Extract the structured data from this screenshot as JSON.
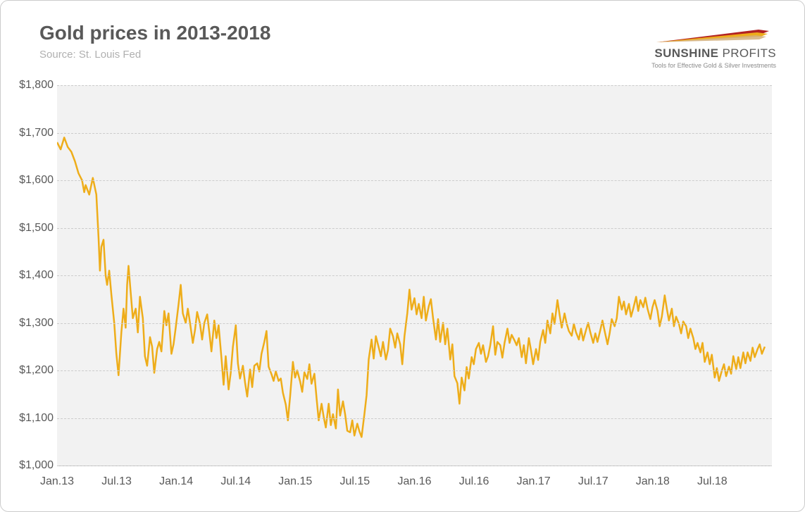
{
  "chart": {
    "type": "line",
    "title": "Gold prices in 2013-2018",
    "subtitle": "Source: St. Louis Fed",
    "background_color": "#ffffff",
    "plot_background_color": "#f2f2f2",
    "grid_color": "#cccccc",
    "grid_dash": "4,4",
    "axis_text_color": "#595959",
    "title_color": "#595959",
    "title_fontsize": 28,
    "subtitle_color": "#b0b0b0",
    "subtitle_fontsize": 15,
    "tick_fontsize": 16,
    "border_color": "#cccccc",
    "border_radius": 12,
    "y_axis": {
      "min": 1000,
      "max": 1800,
      "tick_step": 100,
      "tick_labels": [
        "$1,000",
        "$1,100",
        "$1,200",
        "$1,300",
        "$1,400",
        "$1,500",
        "$1,600",
        "$1,700",
        "$1,800"
      ]
    },
    "x_axis": {
      "labels": [
        "Jan.13",
        "Jul.13",
        "Jan.14",
        "Jul.14",
        "Jan.15",
        "Jul.15",
        "Jan.16",
        "Jul.16",
        "Jan.17",
        "Jul.17",
        "Jan.18",
        "Jul.18"
      ],
      "positions_pct": [
        0,
        8.33,
        16.66,
        25.0,
        33.33,
        41.66,
        50.0,
        58.33,
        66.66,
        75.0,
        83.33,
        91.66
      ]
    },
    "series": [
      {
        "name": "gold-price",
        "color": "#eead1a",
        "line_width": 2.5,
        "data": [
          [
            0.0,
            1680
          ],
          [
            0.5,
            1665
          ],
          [
            1.0,
            1690
          ],
          [
            1.5,
            1670
          ],
          [
            2.0,
            1660
          ],
          [
            2.5,
            1640
          ],
          [
            3.0,
            1615
          ],
          [
            3.5,
            1600
          ],
          [
            3.8,
            1575
          ],
          [
            4.0,
            1590
          ],
          [
            4.5,
            1570
          ],
          [
            5.0,
            1605
          ],
          [
            5.5,
            1570
          ],
          [
            5.8,
            1480
          ],
          [
            6.0,
            1410
          ],
          [
            6.2,
            1460
          ],
          [
            6.5,
            1475
          ],
          [
            6.8,
            1400
          ],
          [
            7.0,
            1380
          ],
          [
            7.3,
            1410
          ],
          [
            7.6,
            1360
          ],
          [
            8.0,
            1300
          ],
          [
            8.3,
            1235
          ],
          [
            8.6,
            1190
          ],
          [
            9.0,
            1280
          ],
          [
            9.3,
            1330
          ],
          [
            9.6,
            1290
          ],
          [
            9.8,
            1380
          ],
          [
            10.0,
            1420
          ],
          [
            10.3,
            1365
          ],
          [
            10.6,
            1310
          ],
          [
            11.0,
            1330
          ],
          [
            11.3,
            1280
          ],
          [
            11.6,
            1355
          ],
          [
            12.0,
            1310
          ],
          [
            12.3,
            1230
          ],
          [
            12.6,
            1210
          ],
          [
            13.0,
            1270
          ],
          [
            13.3,
            1250
          ],
          [
            13.6,
            1195
          ],
          [
            14.0,
            1245
          ],
          [
            14.3,
            1260
          ],
          [
            14.6,
            1240
          ],
          [
            15.0,
            1325
          ],
          [
            15.3,
            1295
          ],
          [
            15.6,
            1320
          ],
          [
            16.0,
            1235
          ],
          [
            16.3,
            1255
          ],
          [
            16.6,
            1290
          ],
          [
            17.0,
            1340
          ],
          [
            17.3,
            1380
          ],
          [
            17.6,
            1320
          ],
          [
            18.0,
            1300
          ],
          [
            18.3,
            1330
          ],
          [
            18.6,
            1300
          ],
          [
            19.0,
            1258
          ],
          [
            19.3,
            1285
          ],
          [
            19.6,
            1323
          ],
          [
            20.0,
            1298
          ],
          [
            20.3,
            1265
          ],
          [
            20.6,
            1300
          ],
          [
            21.0,
            1318
          ],
          [
            21.3,
            1280
          ],
          [
            21.6,
            1240
          ],
          [
            22.0,
            1305
          ],
          [
            22.3,
            1268
          ],
          [
            22.6,
            1295
          ],
          [
            23.0,
            1225
          ],
          [
            23.3,
            1170
          ],
          [
            23.6,
            1230
          ],
          [
            24.0,
            1160
          ],
          [
            24.3,
            1195
          ],
          [
            24.6,
            1250
          ],
          [
            25.0,
            1295
          ],
          [
            25.3,
            1215
          ],
          [
            25.6,
            1183
          ],
          [
            26.0,
            1210
          ],
          [
            26.3,
            1175
          ],
          [
            26.6,
            1145
          ],
          [
            27.0,
            1202
          ],
          [
            27.3,
            1165
          ],
          [
            27.6,
            1210
          ],
          [
            28.0,
            1215
          ],
          [
            28.3,
            1198
          ],
          [
            28.6,
            1235
          ],
          [
            29.0,
            1260
          ],
          [
            29.3,
            1283
          ],
          [
            29.6,
            1208
          ],
          [
            30.0,
            1192
          ],
          [
            30.3,
            1178
          ],
          [
            30.6,
            1198
          ],
          [
            31.0,
            1178
          ],
          [
            31.3,
            1183
          ],
          [
            31.6,
            1153
          ],
          [
            32.0,
            1128
          ],
          [
            32.3,
            1095
          ],
          [
            32.6,
            1145
          ],
          [
            33.0,
            1218
          ],
          [
            33.3,
            1185
          ],
          [
            33.6,
            1200
          ],
          [
            34.0,
            1177
          ],
          [
            34.3,
            1155
          ],
          [
            34.6,
            1196
          ],
          [
            35.0,
            1182
          ],
          [
            35.3,
            1213
          ],
          [
            35.6,
            1172
          ],
          [
            36.0,
            1193
          ],
          [
            36.3,
            1143
          ],
          [
            36.6,
            1095
          ],
          [
            37.0,
            1130
          ],
          [
            37.3,
            1102
          ],
          [
            37.6,
            1080
          ],
          [
            38.0,
            1130
          ],
          [
            38.3,
            1085
          ],
          [
            38.6,
            1108
          ],
          [
            39.0,
            1078
          ],
          [
            39.3,
            1160
          ],
          [
            39.6,
            1105
          ],
          [
            40.0,
            1135
          ],
          [
            40.3,
            1108
          ],
          [
            40.6,
            1073
          ],
          [
            41.0,
            1070
          ],
          [
            41.3,
            1095
          ],
          [
            41.6,
            1063
          ],
          [
            42.0,
            1088
          ],
          [
            42.3,
            1072
          ],
          [
            42.6,
            1060
          ],
          [
            43.0,
            1108
          ],
          [
            43.3,
            1148
          ],
          [
            43.6,
            1223
          ],
          [
            44.0,
            1265
          ],
          [
            44.3,
            1225
          ],
          [
            44.6,
            1272
          ],
          [
            45.0,
            1248
          ],
          [
            45.3,
            1230
          ],
          [
            45.6,
            1260
          ],
          [
            46.0,
            1223
          ],
          [
            46.3,
            1243
          ],
          [
            46.6,
            1288
          ],
          [
            47.0,
            1272
          ],
          [
            47.3,
            1248
          ],
          [
            47.6,
            1278
          ],
          [
            48.0,
            1255
          ],
          [
            48.3,
            1213
          ],
          [
            48.6,
            1272
          ],
          [
            49.0,
            1320
          ],
          [
            49.3,
            1370
          ],
          [
            49.6,
            1328
          ],
          [
            50.0,
            1352
          ],
          [
            50.3,
            1318
          ],
          [
            50.6,
            1340
          ],
          [
            51.0,
            1310
          ],
          [
            51.3,
            1355
          ],
          [
            51.6,
            1305
          ],
          [
            52.0,
            1335
          ],
          [
            52.3,
            1350
          ],
          [
            52.6,
            1310
          ],
          [
            53.0,
            1265
          ],
          [
            53.3,
            1308
          ],
          [
            53.6,
            1260
          ],
          [
            54.0,
            1300
          ],
          [
            54.3,
            1255
          ],
          [
            54.6,
            1288
          ],
          [
            55.0,
            1223
          ],
          [
            55.3,
            1255
          ],
          [
            55.6,
            1188
          ],
          [
            56.0,
            1173
          ],
          [
            56.3,
            1130
          ],
          [
            56.6,
            1185
          ],
          [
            57.0,
            1158
          ],
          [
            57.3,
            1207
          ],
          [
            57.6,
            1183
          ],
          [
            58.0,
            1228
          ],
          [
            58.3,
            1213
          ],
          [
            58.6,
            1245
          ],
          [
            59.0,
            1258
          ],
          [
            59.3,
            1235
          ],
          [
            59.6,
            1253
          ],
          [
            60.0,
            1218
          ],
          [
            60.3,
            1230
          ],
          [
            60.6,
            1253
          ],
          [
            61.0,
            1293
          ],
          [
            61.3,
            1233
          ],
          [
            61.6,
            1260
          ],
          [
            62.0,
            1253
          ],
          [
            62.3,
            1227
          ],
          [
            62.6,
            1258
          ],
          [
            63.0,
            1288
          ],
          [
            63.3,
            1258
          ],
          [
            63.6,
            1275
          ],
          [
            64.0,
            1263
          ],
          [
            64.3,
            1253
          ],
          [
            64.6,
            1268
          ],
          [
            65.0,
            1228
          ],
          [
            65.3,
            1253
          ],
          [
            65.6,
            1215
          ],
          [
            66.0,
            1268
          ],
          [
            66.3,
            1243
          ],
          [
            66.6,
            1213
          ],
          [
            67.0,
            1245
          ],
          [
            67.3,
            1222
          ],
          [
            67.6,
            1260
          ],
          [
            68.0,
            1285
          ],
          [
            68.3,
            1258
          ],
          [
            68.6,
            1305
          ],
          [
            69.0,
            1278
          ],
          [
            69.3,
            1320
          ],
          [
            69.6,
            1298
          ],
          [
            70.0,
            1348
          ],
          [
            70.3,
            1318
          ],
          [
            70.6,
            1290
          ],
          [
            71.0,
            1320
          ],
          [
            71.3,
            1298
          ],
          [
            71.6,
            1283
          ],
          [
            72.0,
            1273
          ],
          [
            72.3,
            1298
          ],
          [
            72.6,
            1280
          ],
          [
            73.0,
            1265
          ],
          [
            73.3,
            1288
          ],
          [
            73.6,
            1263
          ],
          [
            74.0,
            1285
          ],
          [
            74.3,
            1300
          ],
          [
            74.6,
            1280
          ],
          [
            75.0,
            1258
          ],
          [
            75.3,
            1278
          ],
          [
            75.6,
            1260
          ],
          [
            76.0,
            1285
          ],
          [
            76.3,
            1305
          ],
          [
            76.6,
            1283
          ],
          [
            77.0,
            1255
          ],
          [
            77.3,
            1278
          ],
          [
            77.6,
            1308
          ],
          [
            78.0,
            1293
          ],
          [
            78.3,
            1310
          ],
          [
            78.6,
            1355
          ],
          [
            79.0,
            1328
          ],
          [
            79.3,
            1345
          ],
          [
            79.6,
            1318
          ],
          [
            80.0,
            1340
          ],
          [
            80.3,
            1313
          ],
          [
            80.6,
            1330
          ],
          [
            81.0,
            1355
          ],
          [
            81.3,
            1325
          ],
          [
            81.6,
            1348
          ],
          [
            82.0,
            1333
          ],
          [
            82.3,
            1353
          ],
          [
            82.6,
            1330
          ],
          [
            83.0,
            1308
          ],
          [
            83.3,
            1333
          ],
          [
            83.6,
            1348
          ],
          [
            84.0,
            1325
          ],
          [
            84.3,
            1293
          ],
          [
            84.6,
            1313
          ],
          [
            85.0,
            1358
          ],
          [
            85.3,
            1330
          ],
          [
            85.6,
            1305
          ],
          [
            86.0,
            1330
          ],
          [
            86.3,
            1293
          ],
          [
            86.6,
            1313
          ],
          [
            87.0,
            1298
          ],
          [
            87.3,
            1278
          ],
          [
            87.6,
            1303
          ],
          [
            88.0,
            1293
          ],
          [
            88.3,
            1268
          ],
          [
            88.6,
            1288
          ],
          [
            89.0,
            1268
          ],
          [
            89.3,
            1245
          ],
          [
            89.6,
            1258
          ],
          [
            90.0,
            1238
          ],
          [
            90.3,
            1258
          ],
          [
            90.6,
            1218
          ],
          [
            91.0,
            1238
          ],
          [
            91.3,
            1213
          ],
          [
            91.6,
            1233
          ],
          [
            92.0,
            1185
          ],
          [
            92.3,
            1205
          ],
          [
            92.6,
            1178
          ],
          [
            93.0,
            1200
          ],
          [
            93.3,
            1213
          ],
          [
            93.6,
            1188
          ],
          [
            94.0,
            1208
          ],
          [
            94.3,
            1193
          ],
          [
            94.6,
            1230
          ],
          [
            95.0,
            1203
          ],
          [
            95.3,
            1228
          ],
          [
            95.6,
            1205
          ],
          [
            96.0,
            1238
          ],
          [
            96.3,
            1215
          ],
          [
            96.6,
            1238
          ],
          [
            97.0,
            1220
          ],
          [
            97.3,
            1248
          ],
          [
            97.6,
            1228
          ],
          [
            98.0,
            1245
          ],
          [
            98.3,
            1255
          ],
          [
            98.6,
            1235
          ],
          [
            99.0,
            1250
          ]
        ]
      }
    ]
  },
  "logo": {
    "brand_strong": "SUNSHINE",
    "brand_light": "PROFITS",
    "tagline": "Tools for Effective Gold & Silver Investments",
    "swoosh_colors": [
      "#b22222",
      "#eead1a",
      "#d4af7a"
    ]
  }
}
